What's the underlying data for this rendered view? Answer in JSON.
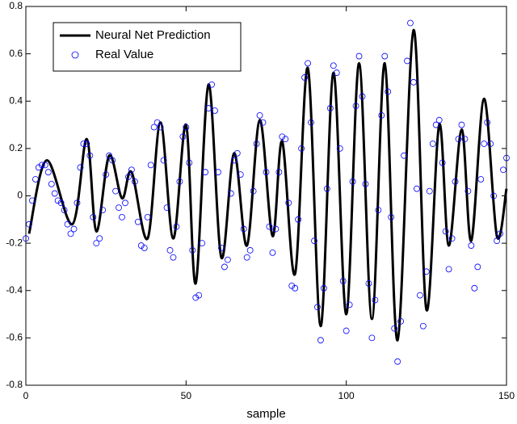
{
  "chart_data": {
    "type": "line",
    "xlabel": "sample",
    "xlim": [
      0,
      150
    ],
    "xticks": [
      0,
      50,
      100,
      150
    ],
    "ylim": [
      -0.8,
      0.8
    ],
    "yticks": [
      -0.8,
      -0.6,
      -0.4,
      -0.2,
      0,
      0.2,
      0.4,
      0.6,
      0.8
    ],
    "legend": "upper left",
    "series": [
      {
        "name": "Neural Net Prediction",
        "type": "line",
        "color": "#000000",
        "x": [
          1,
          6.5,
          14.5,
          19,
          22,
          26,
          30,
          33,
          38,
          42,
          46,
          50,
          53,
          57,
          61,
          65,
          69,
          73,
          77,
          80,
          84,
          88,
          92,
          96,
          100,
          104,
          108,
          112,
          116,
          121,
          125,
          129,
          132,
          136,
          139,
          143,
          147,
          150
        ],
        "values": [
          -0.16,
          0.15,
          -0.12,
          0.24,
          -0.15,
          0.17,
          -0.01,
          0.1,
          -0.18,
          0.31,
          -0.18,
          0.3,
          -0.37,
          0.47,
          -0.26,
          0.18,
          -0.21,
          0.32,
          -0.17,
          0.23,
          -0.33,
          0.54,
          -0.55,
          0.52,
          -0.5,
          0.56,
          -0.52,
          0.56,
          -0.61,
          0.7,
          -0.48,
          0.3,
          -0.21,
          0.28,
          -0.19,
          0.41,
          -0.17,
          0.03
        ]
      },
      {
        "name": "Real Value",
        "type": "scatter",
        "color": "#0000ff",
        "x": [
          0,
          1,
          2,
          3,
          4,
          5,
          6,
          7,
          8,
          9,
          10,
          11,
          12,
          13,
          14,
          15,
          16,
          17,
          18,
          19,
          20,
          21,
          22,
          23,
          24,
          25,
          26,
          27,
          28,
          29,
          30,
          31,
          32,
          33,
          34,
          35,
          36,
          37,
          38,
          39,
          40,
          41,
          42,
          43,
          44,
          45,
          46,
          47,
          48,
          49,
          50,
          51,
          52,
          53,
          54,
          55,
          56,
          57,
          58,
          59,
          60,
          61,
          62,
          63,
          64,
          65,
          66,
          67,
          68,
          69,
          70,
          71,
          72,
          73,
          74,
          75,
          76,
          77,
          78,
          79,
          80,
          81,
          82,
          83,
          84,
          85,
          86,
          87,
          88,
          89,
          90,
          91,
          92,
          93,
          94,
          95,
          96,
          97,
          98,
          99,
          100,
          101,
          102,
          103,
          104,
          105,
          106,
          107,
          108,
          109,
          110,
          111,
          112,
          113,
          114,
          115,
          116,
          117,
          118,
          119,
          120,
          121,
          122,
          123,
          124,
          125,
          126,
          127,
          128,
          129,
          130,
          131,
          132,
          133,
          134,
          135,
          136,
          137,
          138,
          139,
          140,
          141,
          142,
          143,
          144,
          145,
          146,
          147,
          148,
          149,
          150
        ],
        "values": [
          -0.18,
          -0.12,
          -0.02,
          0.07,
          0.12,
          0.13,
          0.13,
          0.1,
          0.05,
          0.01,
          -0.02,
          -0.03,
          -0.06,
          -0.12,
          -0.16,
          -0.14,
          -0.03,
          0.12,
          0.22,
          0.22,
          0.17,
          -0.09,
          -0.2,
          -0.18,
          -0.06,
          0.09,
          0.17,
          0.15,
          0.02,
          -0.05,
          -0.09,
          -0.03,
          0.08,
          0.11,
          0.06,
          -0.11,
          -0.21,
          -0.22,
          -0.09,
          0.13,
          0.29,
          0.31,
          0.29,
          0.15,
          -0.05,
          -0.23,
          -0.26,
          -0.13,
          0.06,
          0.25,
          0.29,
          0.14,
          -0.23,
          -0.43,
          -0.42,
          -0.2,
          0.1,
          0.37,
          0.47,
          0.36,
          0.1,
          -0.22,
          -0.3,
          -0.27,
          0.01,
          0.15,
          0.18,
          0.09,
          -0.14,
          -0.26,
          -0.23,
          0.02,
          0.22,
          0.34,
          0.31,
          0.1,
          -0.13,
          -0.24,
          -0.14,
          0.1,
          0.25,
          0.24,
          -0.03,
          -0.38,
          -0.39,
          -0.1,
          0.2,
          0.5,
          0.56,
          0.31,
          -0.19,
          -0.47,
          -0.61,
          -0.39,
          0.03,
          0.37,
          0.55,
          0.52,
          0.2,
          -0.36,
          -0.57,
          -0.46,
          0.06,
          0.38,
          0.59,
          0.42,
          0.05,
          -0.37,
          -0.6,
          -0.44,
          -0.06,
          0.34,
          0.59,
          0.44,
          -0.09,
          -0.56,
          -0.7,
          -0.53,
          0.17,
          0.57,
          0.73,
          0.48,
          0.03,
          -0.42,
          -0.55,
          -0.32,
          0.02,
          0.22,
          0.3,
          0.32,
          0.14,
          -0.15,
          -0.31,
          -0.18,
          0.06,
          0.24,
          0.3,
          0.24,
          0.02,
          -0.21,
          -0.39,
          -0.3,
          0.07,
          0.22,
          0.31,
          0.22,
          0.0,
          -0.19,
          -0.16,
          0.11,
          0.16
        ]
      }
    ]
  }
}
